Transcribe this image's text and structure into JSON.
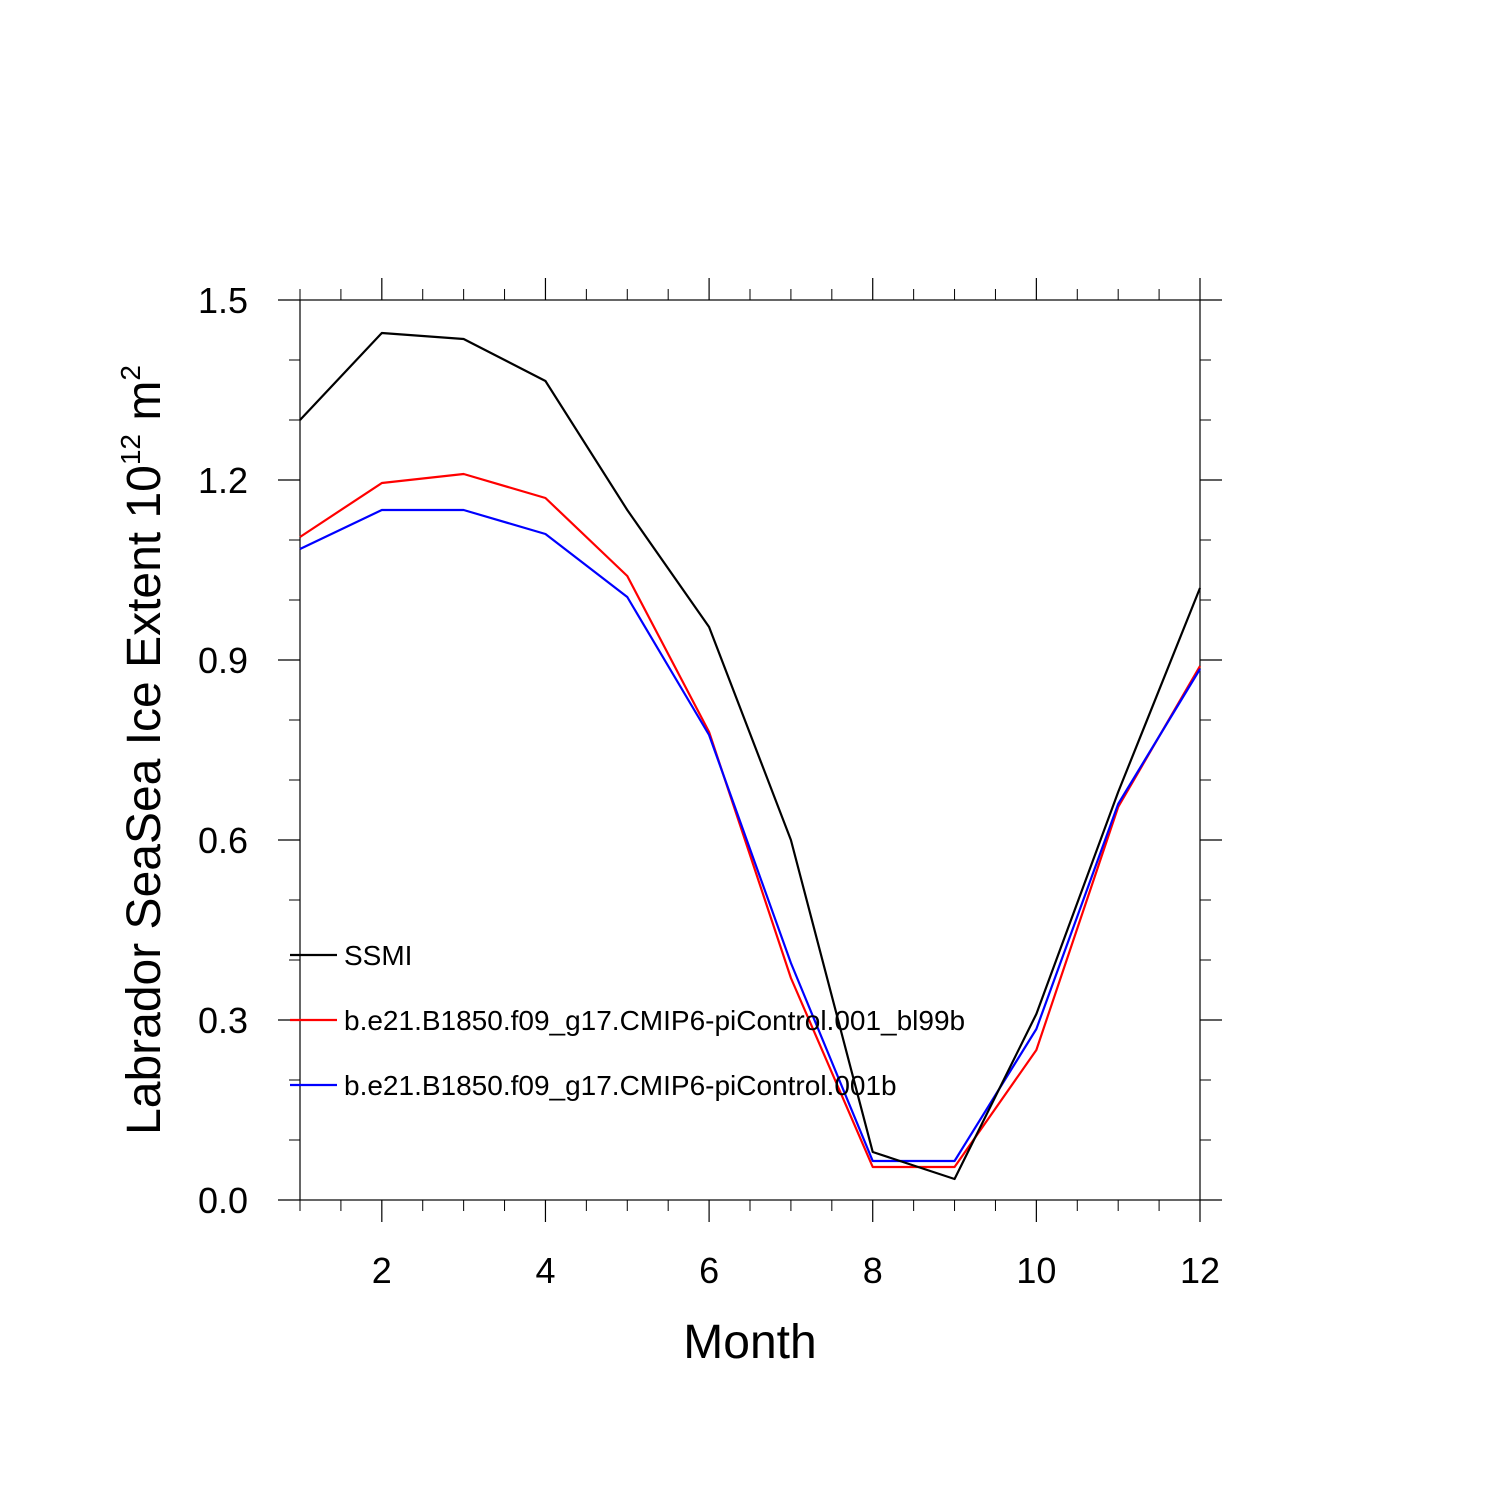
{
  "chart_data": {
    "type": "line",
    "title": "",
    "xlabel": "Month",
    "ylabel": {
      "prefix": "Labrador SeaSea Ice Extent 10",
      "superscript": "12",
      "middle": " m",
      "superscript2": "2"
    },
    "xlim": [
      1,
      12
    ],
    "ylim": [
      0.0,
      1.5
    ],
    "x_ticks": [
      2,
      4,
      6,
      8,
      10,
      12
    ],
    "x_tick_labels": [
      "2",
      "4",
      "6",
      "8",
      "10",
      "12"
    ],
    "y_ticks": [
      0.0,
      0.3,
      0.6,
      0.9,
      1.2,
      1.5
    ],
    "y_tick_labels": [
      "0.0",
      "0.3",
      "0.6",
      "0.9",
      "1.2",
      "1.5"
    ],
    "x": [
      1,
      2,
      3,
      4,
      5,
      6,
      7,
      8,
      9,
      10,
      11,
      12
    ],
    "series": [
      {
        "name": "SSMI",
        "color": "#000000",
        "values": [
          1.3,
          1.445,
          1.435,
          1.365,
          1.15,
          0.955,
          0.6,
          0.08,
          0.035,
          0.31,
          0.68,
          1.02
        ]
      },
      {
        "name": "b.e21.B1850.f09_g17.CMIP6-piControl.001_bl99b",
        "color": "#ff0000",
        "values": [
          1.105,
          1.195,
          1.21,
          1.17,
          1.04,
          0.78,
          0.37,
          0.055,
          0.055,
          0.25,
          0.655,
          0.89
        ]
      },
      {
        "name": "b.e21.B1850.f09_g17.CMIP6-piControl.001b",
        "color": "#0000ff",
        "values": [
          1.085,
          1.15,
          1.15,
          1.11,
          1.005,
          0.775,
          0.395,
          0.065,
          0.065,
          0.285,
          0.66,
          0.885
        ]
      }
    ],
    "legend_position": "lower-left"
  }
}
